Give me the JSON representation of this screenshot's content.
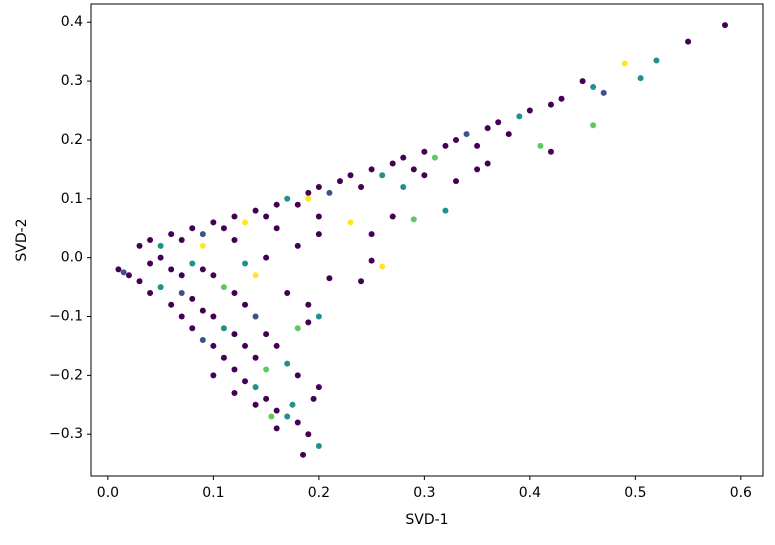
{
  "chart_data": {
    "type": "scatter",
    "xlabel": "SVD-1",
    "ylabel": "SVD-2",
    "xlim": [
      -0.016,
      0.621
    ],
    "ylim": [
      -0.371,
      0.431
    ],
    "xticks": [
      {
        "value": 0,
        "label": "0.0"
      },
      0.1,
      0.2,
      0.3,
      0.4,
      0.5,
      0.6
    ],
    "yticks": [
      {
        "value": -0.3,
        "label": "−0.3"
      },
      {
        "value": -0.2,
        "label": "−0.2"
      },
      {
        "value": -0.1,
        "label": "−0.1"
      },
      {
        "value": 0,
        "label": "0.0"
      },
      0.1,
      0.2,
      0.3,
      0.4
    ],
    "x": [
      0.03,
      0.04,
      0.05,
      0.06,
      0.07,
      0.08,
      0.09,
      0.1,
      0.11,
      0.12,
      0.13,
      0.14,
      0.15,
      0.16,
      0.17,
      0.18,
      0.19,
      0.2,
      0.21,
      0.22,
      0.23,
      0.24,
      0.25,
      0.26,
      0.27,
      0.28,
      0.29,
      0.3,
      0.31,
      0.32,
      0.33,
      0.34,
      0.35,
      0.36,
      0.37,
      0.38,
      0.39,
      0.4,
      0.42,
      0.43,
      0.45,
      0.46,
      0.47,
      0.49,
      0.505,
      0.52,
      0.55,
      0.585,
      0.46,
      0.41,
      0.42,
      0.36,
      0.33,
      0.32,
      0.29,
      0.27,
      0.25,
      0.23,
      0.2,
      0.18,
      0.26,
      0.25,
      0.24,
      0.21,
      0.19,
      0.17,
      0.15,
      0.14,
      0.13,
      0.16,
      0.12,
      0.09,
      0.19,
      0.3,
      0.2,
      0.28,
      0.35,
      0.01,
      0.015,
      0.02,
      0.03,
      0.04,
      0.05,
      0.06,
      0.07,
      0.08,
      0.09,
      0.1,
      0.11,
      0.12,
      0.13,
      0.14,
      0.15,
      0.16,
      0.17,
      0.18,
      0.16,
      0.19,
      0.2,
      0.185,
      0.2,
      0.18,
      0.17,
      0.16,
      0.15,
      0.14,
      0.13,
      0.12,
      0.11,
      0.1,
      0.09,
      0.08,
      0.07,
      0.06,
      0.05,
      0.04,
      0.1,
      0.08,
      0.11,
      0.13,
      0.12,
      0.14,
      0.15,
      0.09,
      0.07,
      0.1,
      0.12,
      0.14,
      0.155,
      0.175,
      0.195,
      0.19,
      0.2,
      0.18
    ],
    "y": [
      0.02,
      0.03,
      0.02,
      0.04,
      0.03,
      0.05,
      0.04,
      0.06,
      0.05,
      0.07,
      0.06,
      0.08,
      0.07,
      0.09,
      0.1,
      0.09,
      0.11,
      0.12,
      0.11,
      0.13,
      0.14,
      0.12,
      0.15,
      0.14,
      0.16,
      0.17,
      0.15,
      0.18,
      0.17,
      0.19,
      0.2,
      0.21,
      0.19,
      0.22,
      0.23,
      0.21,
      0.24,
      0.25,
      0.26,
      0.27,
      0.3,
      0.29,
      0.28,
      0.33,
      0.305,
      0.335,
      0.367,
      0.395,
      0.225,
      0.19,
      0.18,
      0.16,
      0.13,
      0.08,
      0.065,
      0.07,
      0.04,
      0.06,
      0.04,
      0.02,
      -0.015,
      -0.005,
      -0.04,
      -0.035,
      -0.08,
      -0.06,
      0.0,
      -0.03,
      -0.01,
      0.05,
      0.03,
      0.02,
      0.1,
      0.14,
      0.07,
      0.12,
      0.15,
      -0.02,
      -0.025,
      -0.03,
      -0.04,
      -0.06,
      -0.05,
      -0.08,
      -0.1,
      -0.12,
      -0.14,
      -0.15,
      -0.17,
      -0.19,
      -0.21,
      -0.22,
      -0.24,
      -0.26,
      -0.27,
      -0.28,
      -0.29,
      -0.3,
      -0.32,
      -0.335,
      -0.22,
      -0.2,
      -0.18,
      -0.15,
      -0.13,
      -0.1,
      -0.08,
      -0.06,
      -0.05,
      -0.03,
      -0.02,
      -0.01,
      -0.03,
      -0.02,
      0.0,
      -0.01,
      -0.1,
      -0.07,
      -0.12,
      -0.15,
      -0.13,
      -0.17,
      -0.19,
      -0.09,
      -0.06,
      -0.2,
      -0.23,
      -0.25,
      -0.27,
      -0.25,
      -0.24,
      -0.11,
      -0.1,
      -0.12
    ],
    "colors": [
      "#440154",
      "#440154",
      "#21918c",
      "#440154",
      "#440154",
      "#440154",
      "#3b528b",
      "#440154",
      "#440154",
      "#440154",
      "#fde725",
      "#440154",
      "#440154",
      "#440154",
      "#21918c",
      "#440154",
      "#440154",
      "#440154",
      "#3b528b",
      "#440154",
      "#440154",
      "#440154",
      "#440154",
      "#21918c",
      "#440154",
      "#440154",
      "#440154",
      "#440154",
      "#5ec962",
      "#440154",
      "#440154",
      "#3b528b",
      "#440154",
      "#440154",
      "#440154",
      "#440154",
      "#21918c",
      "#440154",
      "#440154",
      "#440154",
      "#440154",
      "#21918c",
      "#3b528b",
      "#fde725",
      "#21918c",
      "#21918c",
      "#440154",
      "#440154",
      "#5ec962",
      "#5ec962",
      "#440154",
      "#440154",
      "#440154",
      "#21918c",
      "#5ec962",
      "#440154",
      "#440154",
      "#fde725",
      "#440154",
      "#440154",
      "#fde725",
      "#440154",
      "#440154",
      "#440154",
      "#440154",
      "#440154",
      "#440154",
      "#fde725",
      "#21918c",
      "#440154",
      "#440154",
      "#fde725",
      "#fde725",
      "#440154",
      "#440154",
      "#21918c",
      "#440154",
      "#440154",
      "#3b528b",
      "#440154",
      "#440154",
      "#440154",
      "#21918c",
      "#440154",
      "#440154",
      "#440154",
      "#3b528b",
      "#440154",
      "#440154",
      "#440154",
      "#440154",
      "#21918c",
      "#440154",
      "#440154",
      "#21918c",
      "#440154",
      "#440154",
      "#440154",
      "#21918c",
      "#440154",
      "#440154",
      "#440154",
      "#21918c",
      "#440154",
      "#440154",
      "#3b528b",
      "#440154",
      "#440154",
      "#5ec962",
      "#440154",
      "#440154",
      "#21918c",
      "#440154",
      "#440154",
      "#440154",
      "#440154",
      "#440154",
      "#440154",
      "#21918c",
      "#440154",
      "#440154",
      "#440154",
      "#5ec962",
      "#440154",
      "#3b528b",
      "#440154",
      "#440154",
      "#440154",
      "#5ec962",
      "#21918c",
      "#440154",
      "#440154",
      "#21918c",
      "#5ec962"
    ]
  }
}
